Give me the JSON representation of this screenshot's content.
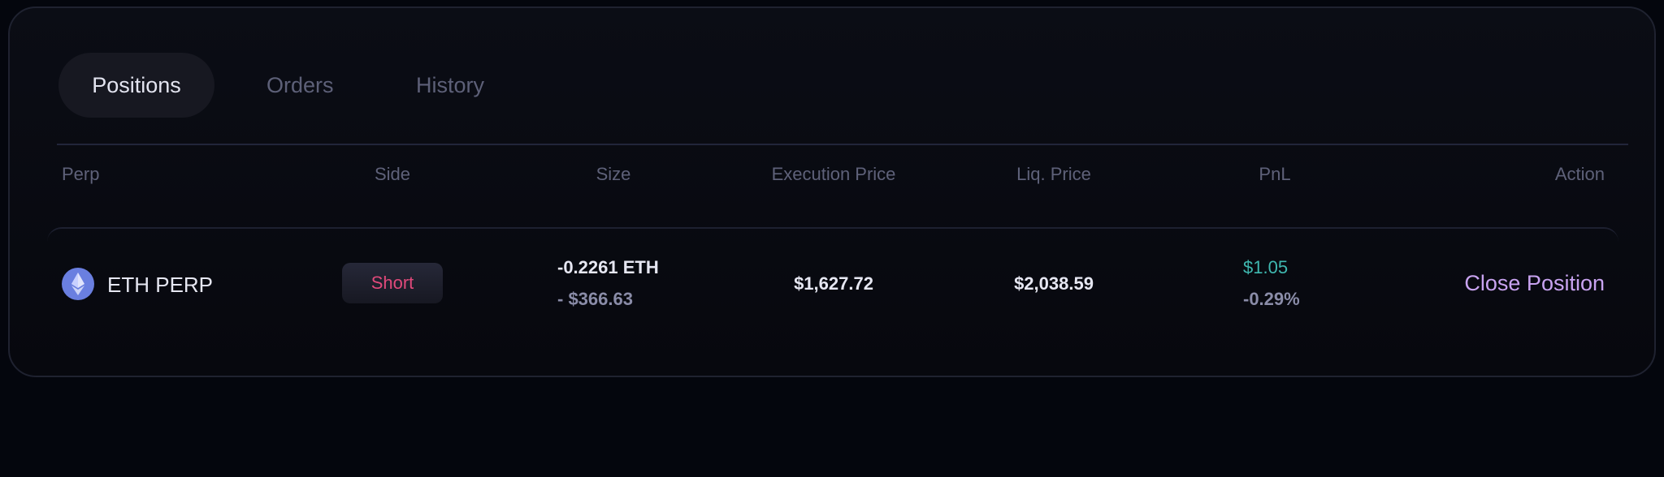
{
  "tabs": [
    {
      "label": "Positions",
      "active": true
    },
    {
      "label": "Orders"
    },
    {
      "label": "History"
    }
  ],
  "columns": [
    "Perp",
    "Side",
    "Size",
    "Execution Price",
    "Liq. Price",
    "PnL",
    "Action"
  ],
  "positions": [
    {
      "perp": "ETH PERP",
      "icon": "ethereum-icon",
      "side": "Short",
      "size": "-0.2261 ETH",
      "size_usd": "- $366.63",
      "execution_price": "$1,627.72",
      "liq_price": "$2,038.59",
      "pnl": "$1.05",
      "pnl_pct": "-0.29%",
      "action": "Close Position"
    }
  ],
  "colors": {
    "short": "#e0497a",
    "pnl_positive": "#3fb8b0",
    "action": "#c8a3f0",
    "eth_icon": "#6a7fe0"
  }
}
